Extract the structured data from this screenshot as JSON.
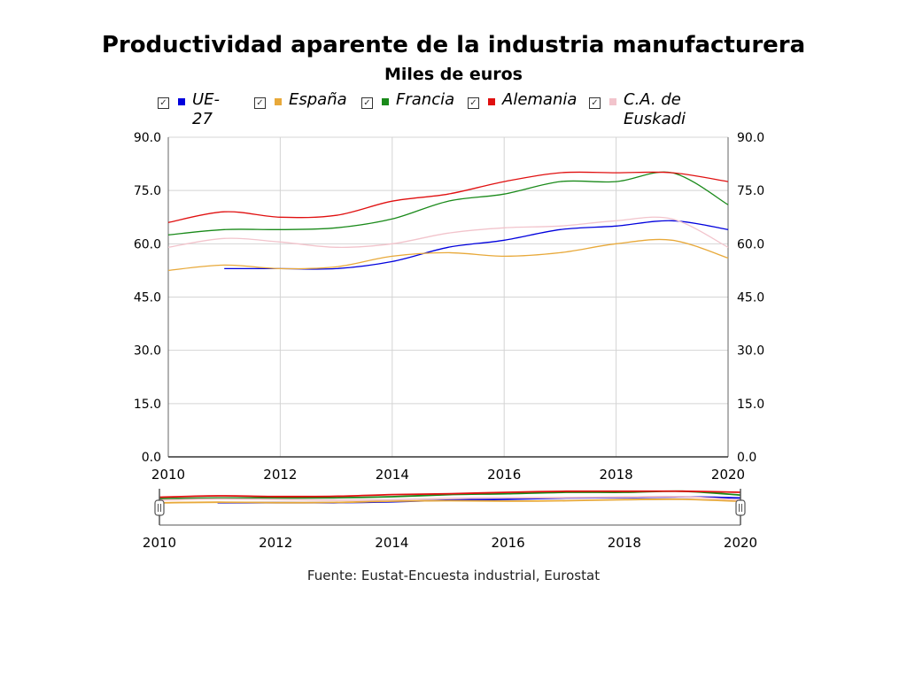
{
  "chart_data": {
    "type": "line",
    "title": "Productividad aparente de la industria manufacturera",
    "subtitle": "Miles de euros",
    "x": [
      2010,
      2011,
      2012,
      2013,
      2014,
      2015,
      2016,
      2017,
      2018,
      2019,
      2020
    ],
    "x_ticks": [
      "2010",
      "2012",
      "2014",
      "2016",
      "2018",
      "2020"
    ],
    "y_ticks": [
      "0.0",
      "15.0",
      "30.0",
      "45.0",
      "60.0",
      "75.0",
      "90.0"
    ],
    "ylim": [
      0,
      90
    ],
    "grid": true,
    "legend_placement": "top",
    "series": [
      {
        "name": "UE-27",
        "color": "#0000dd",
        "values": [
          null,
          53.0,
          53.0,
          53.0,
          55.0,
          59.0,
          61.0,
          64.0,
          65.0,
          66.5,
          64.0
        ]
      },
      {
        "name": "España",
        "color": "#e8a93a",
        "values": [
          52.5,
          54.0,
          53.0,
          53.5,
          56.5,
          57.5,
          56.5,
          57.5,
          60.0,
          61.0,
          56.0
        ]
      },
      {
        "name": "Francia",
        "color": "#1a8a1a",
        "values": [
          62.5,
          64.0,
          64.0,
          64.5,
          67.0,
          72.0,
          74.0,
          77.5,
          77.5,
          80.0,
          71.0
        ]
      },
      {
        "name": "Alemania",
        "color": "#e01010",
        "values": [
          66.0,
          69.0,
          67.5,
          68.0,
          72.0,
          74.0,
          77.5,
          80.0,
          80.0,
          80.0,
          77.5
        ]
      },
      {
        "name": "C.A. de Euskadi",
        "color": "#f2c4cc",
        "values": [
          59.0,
          61.5,
          60.5,
          59.0,
          60.0,
          63.0,
          64.5,
          65.0,
          66.5,
          67.0,
          59.0
        ]
      }
    ],
    "source": "Fuente: Eustat-Encuesta industrial, Eurostat"
  },
  "legend": {
    "items": [
      {
        "label_lines": [
          "UE-",
          "27"
        ],
        "checked": "☑"
      },
      {
        "label_lines": [
          "España"
        ],
        "checked": "☑"
      },
      {
        "label_lines": [
          "Francia"
        ],
        "checked": "☑"
      },
      {
        "label_lines": [
          "Alemania"
        ],
        "checked": "☑"
      },
      {
        "label_lines": [
          "C.A. de",
          "Euskadi"
        ],
        "checked": "☑"
      }
    ]
  }
}
